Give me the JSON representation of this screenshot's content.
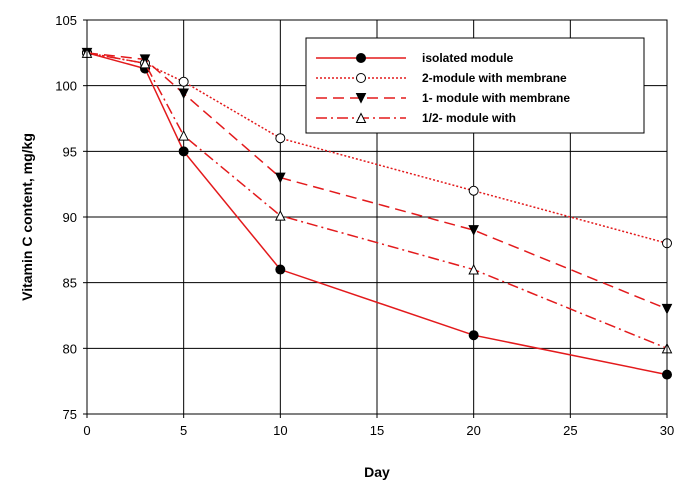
{
  "chart_data": {
    "type": "line",
    "title": "",
    "xlabel": "Day",
    "ylabel": "Vitamin C content, mg/kg",
    "xlim": [
      0,
      30
    ],
    "ylim": [
      75,
      105
    ],
    "x_ticks": [
      0,
      5,
      10,
      15,
      20,
      25,
      30
    ],
    "y_ticks": [
      75,
      80,
      85,
      90,
      95,
      100,
      105
    ],
    "grid": true,
    "legend_position": "top-right",
    "series": [
      {
        "name": "isolated module",
        "color": "#e31a1c",
        "dash": "solid",
        "marker": "filled-circle",
        "x": [
          0,
          3,
          5,
          10,
          20,
          30
        ],
        "values": [
          102.5,
          101.3,
          95,
          86,
          81,
          78
        ]
      },
      {
        "name": "2-module with membrane",
        "color": "#e31a1c",
        "dash": "dotted",
        "marker": "open-circle",
        "x": [
          0,
          3,
          5,
          10,
          20,
          30
        ],
        "values": [
          102.5,
          101.7,
          100.3,
          96,
          92,
          88
        ]
      },
      {
        "name": "1- module with membrane",
        "color": "#e31a1c",
        "dash": "dashed",
        "marker": "filled-triangle-down",
        "x": [
          0,
          3,
          5,
          10,
          20,
          30
        ],
        "values": [
          102.5,
          102,
          99.4,
          93,
          89,
          83
        ]
      },
      {
        "name": "1/2- module with",
        "color": "#e31a1c",
        "dash": "dash-dot",
        "marker": "open-triangle-up",
        "x": [
          0,
          3,
          5,
          10,
          20,
          30
        ],
        "values": [
          102.5,
          101.7,
          96.2,
          90.1,
          86,
          80
        ]
      }
    ]
  }
}
